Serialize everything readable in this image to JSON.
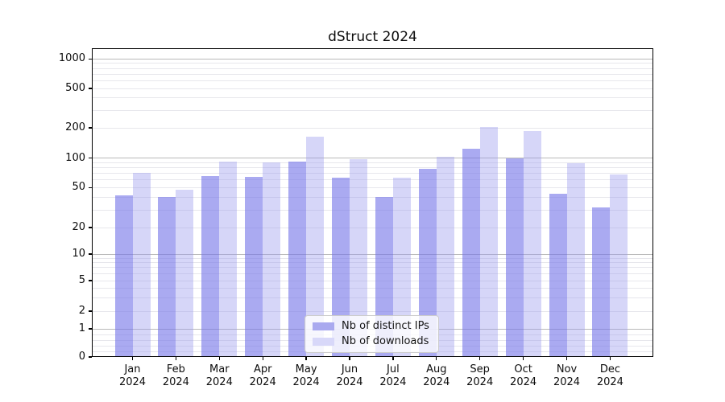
{
  "figure": {
    "title": "dStruct 2024"
  },
  "legend": {
    "items": [
      {
        "label": "Nb of distinct IPs",
        "color": "#a9a9ef"
      },
      {
        "label": "Nb of downloads",
        "color": "#d8d8f9"
      }
    ]
  },
  "chart_data": {
    "type": "bar",
    "title": "dStruct 2024",
    "categories": [
      "Jan",
      "Feb",
      "Mar",
      "Apr",
      "May",
      "Jun",
      "Jul",
      "Aug",
      "Sep",
      "Oct",
      "Nov",
      "Dec"
    ],
    "x_year_suffix": "2024",
    "series": [
      {
        "name": "Nb of distinct IPs",
        "color": "rgba(118,118,232,0.62)",
        "values": [
          42,
          40,
          66,
          64,
          92,
          63,
          40,
          78,
          124,
          100,
          43,
          32
        ]
      },
      {
        "name": "Nb of downloads",
        "color": "rgba(152,152,238,0.40)",
        "values": [
          71,
          48,
          93,
          90,
          164,
          98,
          63,
          103,
          203,
          187,
          89,
          68
        ]
      }
    ],
    "y_axis": {
      "scale": "symlog",
      "tick_values": [
        0,
        1,
        2,
        5,
        10,
        20,
        50,
        100,
        200,
        500,
        1000
      ],
      "tick_labels": [
        "0",
        "1",
        "2",
        "5",
        "10",
        "20",
        "50",
        "100",
        "200",
        "500",
        "1000"
      ],
      "ylim": [
        0,
        1200
      ]
    },
    "grid": true,
    "legend_position": "lower center"
  }
}
